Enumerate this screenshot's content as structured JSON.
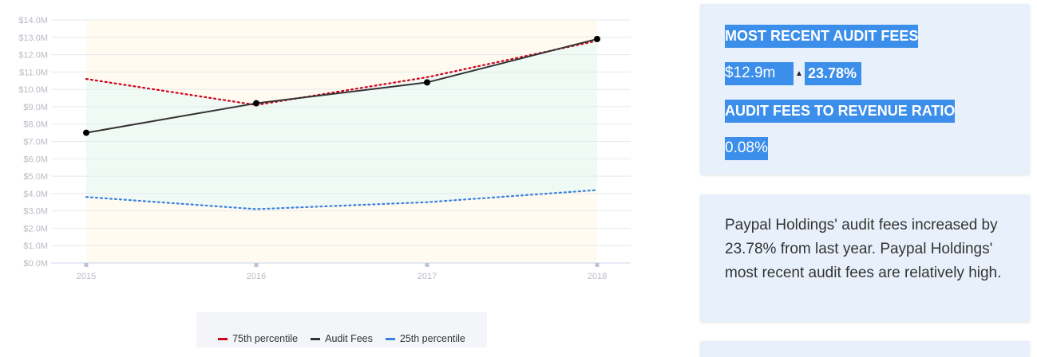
{
  "chart_data": {
    "type": "line",
    "x": [
      "2015",
      "2016",
      "2017",
      "2018"
    ],
    "yticks": [
      "$0.0M",
      "$1.0M",
      "$2.0M",
      "$3.0M",
      "$4.0M",
      "$5.0M",
      "$6.0M",
      "$7.0M",
      "$8.0M",
      "$9.0M",
      "$10.0M",
      "$11.0M",
      "$12.0M",
      "$13.0M",
      "$14.0M"
    ],
    "ylim": [
      0,
      14
    ],
    "series": [
      {
        "name": "75th percentile",
        "color": "#d0021b",
        "style": "dotted",
        "values": [
          10.6,
          9.1,
          10.7,
          12.8
        ]
      },
      {
        "name": "Audit Fees",
        "color": "#333333",
        "style": "solid",
        "values": [
          7.5,
          9.2,
          10.4,
          12.9
        ]
      },
      {
        "name": "25th percentile",
        "color": "#3b7fe0",
        "style": "dotted",
        "values": [
          3.8,
          3.1,
          3.5,
          4.2
        ]
      }
    ],
    "grid": true,
    "legend_position": "bottom"
  },
  "legend": [
    {
      "label": "75th percentile",
      "color": "#d0021b"
    },
    {
      "label": "Audit Fees",
      "color": "#333333"
    },
    {
      "label": "25th percentile",
      "color": "#3b7fe0"
    }
  ],
  "summary": {
    "recent_heading": "MOST RECENT AUDIT FEES",
    "recent_value": "$12.9m",
    "change_pct": "23.78%",
    "ratio_heading": "AUDIT FEES TO REVENUE RATIO",
    "ratio_value": "0.08%"
  },
  "description": "Paypal Holdings' audit fees increased by 23.78% from last year. Paypal Holdings' most recent audit fees are relatively high."
}
